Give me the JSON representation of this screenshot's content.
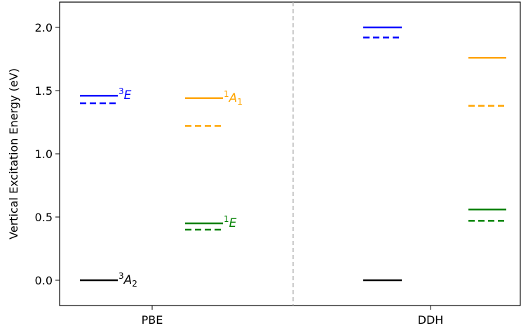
{
  "chart_data": {
    "type": "scatter",
    "ylabel": "Vertical Excitation Energy (eV)",
    "ylim": [
      -0.2,
      2.2
    ],
    "yticks": [
      "0.0",
      "0.5",
      "1.0",
      "1.5",
      "2.0"
    ],
    "categories": [
      "PBE",
      "DDH"
    ],
    "grid": false,
    "colors": {
      "3E": "#0000ff",
      "1A1": "#ffa500",
      "1E": "#008000",
      "3A2": "#000000"
    },
    "series": [
      {
        "state": "3E",
        "label_prefix": "3",
        "label_main": "E",
        "label_sub": "",
        "column": "left",
        "PBE": {
          "solid": 1.46,
          "dashed": 1.4
        },
        "DDH": {
          "solid": 2.0,
          "dashed": 1.92
        }
      },
      {
        "state": "1A1",
        "label_prefix": "1",
        "label_main": "A",
        "label_sub": "1",
        "column": "right",
        "PBE": {
          "solid": 1.44,
          "dashed": 1.22
        },
        "DDH": {
          "solid": 1.76,
          "dashed": 1.38
        }
      },
      {
        "state": "1E",
        "label_prefix": "1",
        "label_main": "E",
        "label_sub": "",
        "column": "right",
        "PBE": {
          "solid": 0.45,
          "dashed": 0.4
        },
        "DDH": {
          "solid": 0.56,
          "dashed": 0.47
        }
      },
      {
        "state": "3A2",
        "label_prefix": "3",
        "label_main": "A",
        "label_sub": "2",
        "column": "left",
        "PBE": {
          "solid": 0.0,
          "dashed": null
        },
        "DDH": {
          "solid": 0.0,
          "dashed": null
        }
      }
    ]
  }
}
